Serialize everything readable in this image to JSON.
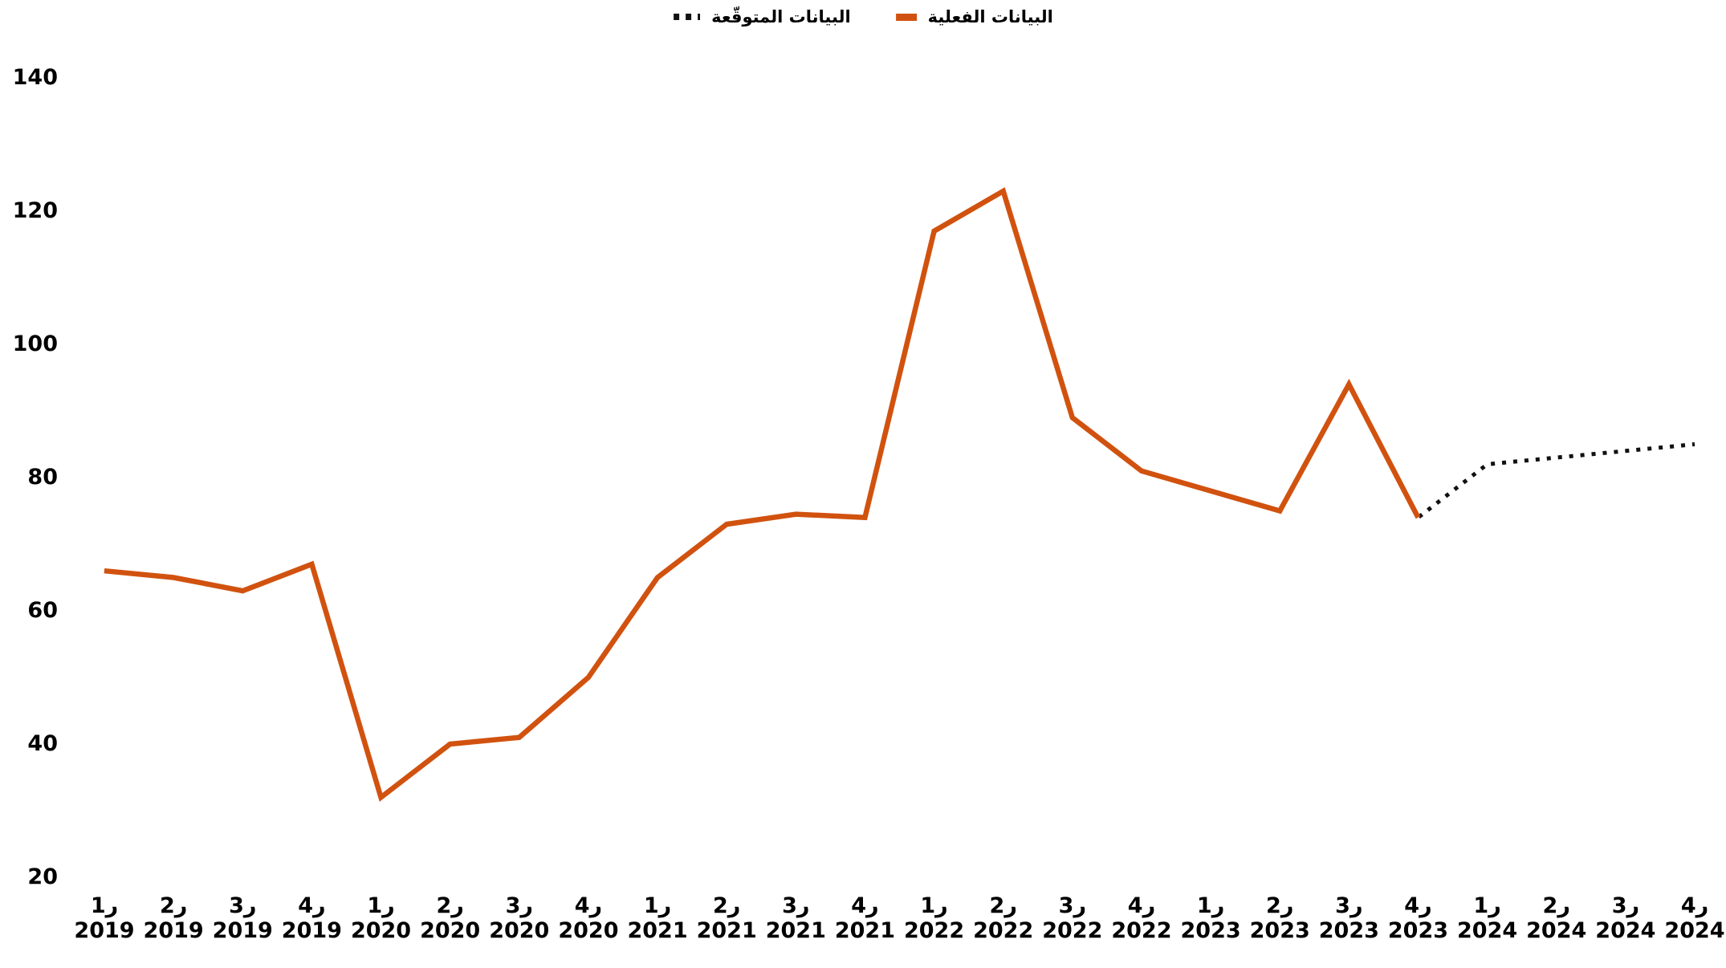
{
  "legend": {
    "forecast_label": "البيانات المتوقّعة",
    "actual_label": "البيانات الفعلية"
  },
  "colors": {
    "actual_line": "#d1520f",
    "forecast_line": "#111111",
    "text": "#000000",
    "background": "#ffffff"
  },
  "chart_data": {
    "type": "line",
    "title": "",
    "xlabel": "",
    "ylabel": "",
    "ylim": [
      20,
      140
    ],
    "yticks": [
      140,
      120,
      100,
      80,
      60,
      40,
      20
    ],
    "grid": false,
    "legend_position": "top-center",
    "x_categories": [
      {
        "quarter": "ر1",
        "year": "2019"
      },
      {
        "quarter": "ر2",
        "year": "2019"
      },
      {
        "quarter": "ر3",
        "year": "2019"
      },
      {
        "quarter": "ر4",
        "year": "2019"
      },
      {
        "quarter": "ر1",
        "year": "2020"
      },
      {
        "quarter": "ر2",
        "year": "2020"
      },
      {
        "quarter": "ر3",
        "year": "2020"
      },
      {
        "quarter": "ر4",
        "year": "2020"
      },
      {
        "quarter": "ر1",
        "year": "2021"
      },
      {
        "quarter": "ر2",
        "year": "2021"
      },
      {
        "quarter": "ر3",
        "year": "2021"
      },
      {
        "quarter": "ر4",
        "year": "2021"
      },
      {
        "quarter": "ر1",
        "year": "2022"
      },
      {
        "quarter": "ر2",
        "year": "2022"
      },
      {
        "quarter": "ر3",
        "year": "2022"
      },
      {
        "quarter": "ر4",
        "year": "2022"
      },
      {
        "quarter": "ر1",
        "year": "2023"
      },
      {
        "quarter": "ر2",
        "year": "2023"
      },
      {
        "quarter": "ر3",
        "year": "2023"
      },
      {
        "quarter": "ر4",
        "year": "2023"
      },
      {
        "quarter": "ر1",
        "year": "2024"
      },
      {
        "quarter": "ر2",
        "year": "2024"
      },
      {
        "quarter": "ر3",
        "year": "2024"
      },
      {
        "quarter": "ر4",
        "year": "2024"
      }
    ],
    "series": [
      {
        "name": "البيانات الفعلية",
        "style": "solid",
        "color": "#d1520f",
        "values": [
          66,
          65,
          63,
          67,
          32,
          40,
          41,
          50,
          65,
          73,
          74.5,
          74,
          117,
          123,
          89,
          81,
          78,
          75,
          94,
          74,
          null,
          null,
          null,
          null
        ]
      },
      {
        "name": "البيانات المتوقّعة",
        "style": "dotted",
        "color": "#111111",
        "values": [
          66,
          65,
          63,
          67,
          32,
          40,
          41,
          50,
          65,
          73,
          74.5,
          74,
          117,
          123,
          89,
          81,
          78,
          75,
          94,
          74,
          82,
          83,
          84,
          85
        ]
      }
    ]
  }
}
